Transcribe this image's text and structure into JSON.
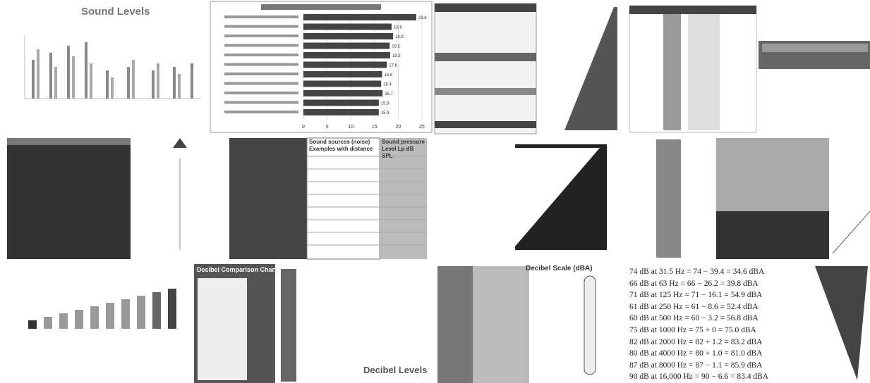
{
  "results": {
    "sound_levels": {
      "title": "Sound Levels"
    },
    "noise_chart": {
      "ticks": [
        0,
        5,
        10,
        15,
        20,
        25
      ],
      "values": [
        23.8,
        18.6,
        18.9,
        18.2,
        18.3,
        17.6,
        16.6,
        16.4,
        16.7,
        15.9,
        15.9
      ]
    },
    "noise_table": {
      "header_sources": "Sound sources (noise) Examples with distance",
      "header_level": "Sound pressure Level Lp dB SPL"
    },
    "comparison": {
      "title": "Decibel Comparison Chart"
    },
    "scale": {
      "title": "Decibel Scale (dBA)"
    },
    "levels": {
      "title": "Decibel Levels"
    },
    "dba_lines": [
      "74 dB at 31.5 Hz = 74 − 39.4 = 34.6 dBA",
      "66 dB at 63 Hz = 66 − 26.2 = 39.8 dBA",
      "71 dB at 125 Hz = 71 − 16.1 = 54.9 dBA",
      "61 dB at 250 Hz = 61 − 8.6 = 52.4 dBA",
      "60 dB at 500 Hz = 60 − 3.2 = 56.8 dBA",
      "75 dB at 1000 Hz = 75 + 0 = 75.0 dBA",
      "82 dB at 2000 Hz = 82 + 1.2 = 83.2 dBA",
      "80 dB at 4000 Hz = 80 + 1.0 = 81.0 dBA",
      "87 dB at 8000 Hz = 87 − 1.1 = 85.9 dBA",
      "90 dB at 16,000 Hz = 90 − 6.6 = 83.4 dBA"
    ]
  }
}
